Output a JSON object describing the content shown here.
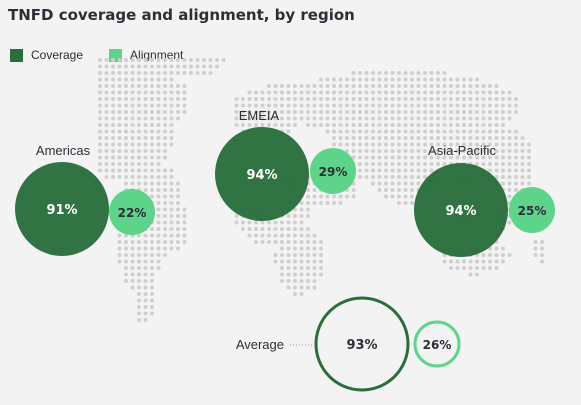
{
  "title": "TNFD coverage and alignment, by region",
  "colors": {
    "coverage": "#2a6e3c",
    "alignment": "#5ed38a",
    "map_dots": "#cfcfcf",
    "background": "#f3f3f3"
  },
  "chart_data": {
    "type": "bubble",
    "title": "TNFD coverage and alignment, by region",
    "legend": [
      {
        "name": "Coverage",
        "color": "#2a6e3c"
      },
      {
        "name": "Alignment",
        "color": "#5ed38a"
      }
    ],
    "legend_position": "top-left",
    "categories": [
      "Americas",
      "EMEIA",
      "Asia-Pacific",
      "Average"
    ],
    "series": [
      {
        "name": "Coverage",
        "values": [
          91,
          94,
          94,
          93
        ],
        "labels": [
          "91%",
          "94%",
          "94%",
          "93%"
        ]
      },
      {
        "name": "Alignment",
        "values": [
          22,
          29,
          25,
          26
        ],
        "labels": [
          "22%",
          "29%",
          "25%",
          "26%"
        ]
      }
    ]
  }
}
